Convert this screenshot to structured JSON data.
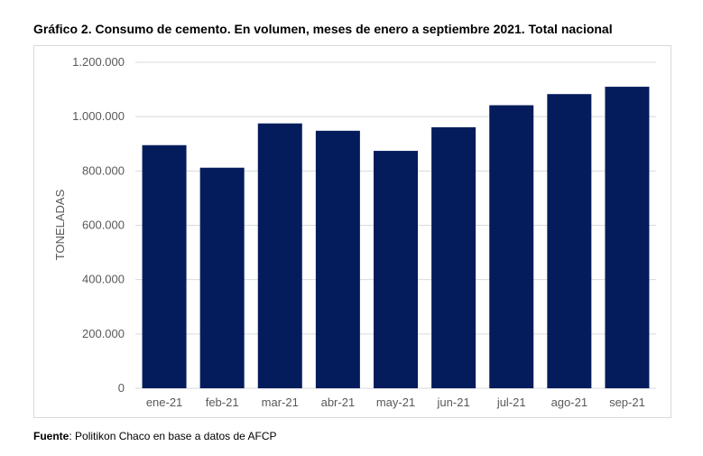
{
  "figure": {
    "title": "Gráfico 2. Consumo de cemento. En volumen, meses de enero a septiembre 2021. Total nacional",
    "source_label": "Fuente",
    "source_text": ": Politikon Chaco en base a datos de AFCP"
  },
  "chart_data": {
    "type": "bar",
    "categories": [
      "ene-21",
      "feb-21",
      "mar-21",
      "abr-21",
      "may-21",
      "jun-21",
      "jul-21",
      "ago-21",
      "sep-21"
    ],
    "values": [
      895000,
      812000,
      975000,
      948000,
      874000,
      961000,
      1042000,
      1083000,
      1110000
    ],
    "ylabel": "TONELADAS",
    "ylim": [
      0,
      1200000
    ],
    "yticks": [
      0,
      200000,
      400000,
      600000,
      800000,
      1000000,
      1200000
    ],
    "ytick_labels": [
      "0",
      "200.000",
      "400.000",
      "600.000",
      "800.000",
      "1.000.000",
      "1.200.000"
    ],
    "grid": true,
    "bar_color": "#041C5C",
    "grid_color": "#d9d9d9"
  }
}
